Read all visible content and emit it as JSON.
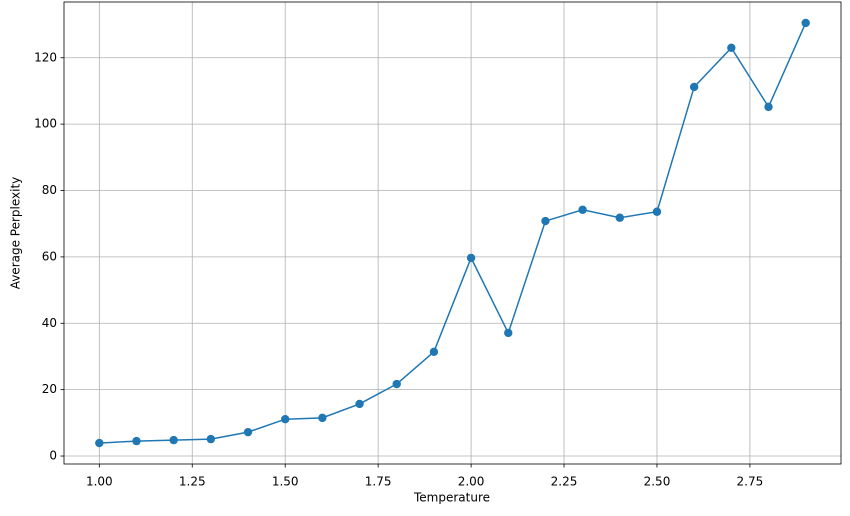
{
  "chart_data": {
    "type": "line",
    "x_label": "Temperature",
    "y_label": "Average Perplexity",
    "x": [
      1.0,
      1.1,
      1.2,
      1.3,
      1.4,
      1.5,
      1.6,
      1.7,
      1.8,
      1.9,
      2.0,
      2.1,
      2.2,
      2.3,
      2.4,
      2.5,
      2.6,
      2.7,
      2.8,
      2.9
    ],
    "series": [
      {
        "color": "#1f77b4",
        "values": [
          3.9,
          4.5,
          4.8,
          5.1,
          7.2,
          11.1,
          11.5,
          15.7,
          21.7,
          31.4,
          59.7,
          37.1,
          70.8,
          74.2,
          71.8,
          73.6,
          111.2,
          123.0,
          105.2,
          130.5
        ]
      }
    ],
    "xlim": [
      0.905,
      2.995
    ],
    "ylim": [
      -2.4,
      136.8
    ],
    "xticks": [
      {
        "value": 1.0,
        "label": "1.00"
      },
      {
        "value": 1.25,
        "label": "1.25"
      },
      {
        "value": 1.5,
        "label": "1.50"
      },
      {
        "value": 1.75,
        "label": "1.75"
      },
      {
        "value": 2.0,
        "label": "2.00"
      },
      {
        "value": 2.25,
        "label": "2.25"
      },
      {
        "value": 2.5,
        "label": "2.50"
      },
      {
        "value": 2.75,
        "label": "2.75"
      }
    ],
    "yticks": [
      0,
      20,
      40,
      60,
      80,
      100,
      120
    ],
    "grid": true
  }
}
